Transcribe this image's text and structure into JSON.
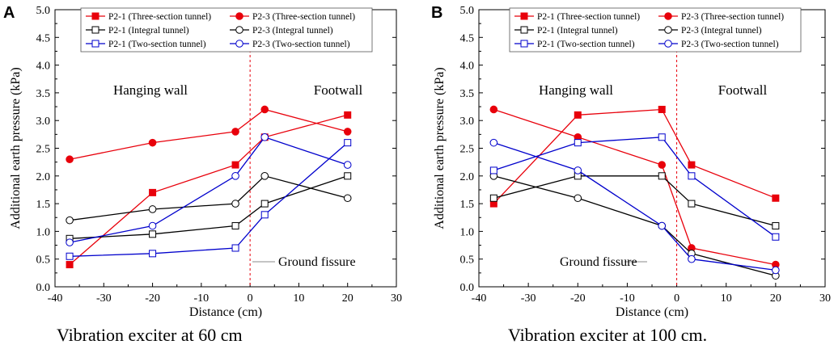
{
  "chart_data": [
    {
      "type": "line",
      "panel_label": "A",
      "caption": "Vibration exciter at 60 cm",
      "xlabel": "Distance (cm)",
      "ylabel": "Additional earth pressure (kPa)",
      "xlim": [
        -40,
        30
      ],
      "ylim": [
        0,
        5
      ],
      "xticks": [
        "-40",
        "-30",
        "-20",
        "-10",
        "0",
        "10",
        "20",
        "30"
      ],
      "yticks": [
        "0.0",
        "0.5",
        "1.0",
        "1.5",
        "2.0",
        "2.5",
        "3.0",
        "3.5",
        "4.0",
        "4.5",
        "5.0"
      ],
      "annotations": {
        "left_region": "Hanging wall",
        "right_region": "Footwall",
        "fissure_label": "Ground fissure"
      },
      "series": [
        {
          "name": "P2-1 (Three-section tunnel)",
          "color": "#e8000b",
          "marker": "square",
          "filled": true,
          "x": [
            -37,
            -20,
            -3,
            3,
            20
          ],
          "y": [
            0.4,
            1.7,
            2.2,
            2.7,
            3.1
          ]
        },
        {
          "name": "P2-3 (Three-section tunnel)",
          "color": "#e8000b",
          "marker": "circle",
          "filled": true,
          "x": [
            -37,
            -20,
            -3,
            3,
            20
          ],
          "y": [
            2.3,
            2.6,
            2.8,
            3.2,
            2.8
          ]
        },
        {
          "name": "P2-1 (Integral tunnel)",
          "color": "#000000",
          "marker": "square",
          "filled": false,
          "x": [
            -37,
            -20,
            -3,
            3,
            20
          ],
          "y": [
            0.87,
            0.95,
            1.1,
            1.5,
            2.0
          ]
        },
        {
          "name": "P2-3 (Integral tunnel)",
          "color": "#000000",
          "marker": "circle",
          "filled": false,
          "x": [
            -37,
            -20,
            -3,
            3,
            20
          ],
          "y": [
            1.2,
            1.4,
            1.5,
            2.0,
            1.6
          ]
        },
        {
          "name": "P2-1 (Two-section tunnel)",
          "color": "#0000cc",
          "marker": "square",
          "filled": false,
          "x": [
            -37,
            -20,
            -3,
            3,
            20
          ],
          "y": [
            0.55,
            0.6,
            0.7,
            1.3,
            2.6
          ]
        },
        {
          "name": "P2-3 (Two-section tunnel)",
          "color": "#0000cc",
          "marker": "circle",
          "filled": false,
          "x": [
            -37,
            -20,
            -3,
            3,
            20
          ],
          "y": [
            0.8,
            1.1,
            2.0,
            2.7,
            2.2
          ]
        }
      ]
    },
    {
      "type": "line",
      "panel_label": "B",
      "caption": "Vibration exciter at 100 cm.",
      "xlabel": "Distance (cm)",
      "ylabel": "Additional earth pressure (kPa)",
      "xlim": [
        -40,
        30
      ],
      "ylim": [
        0,
        5
      ],
      "xticks": [
        "-40",
        "-30",
        "-20",
        "-10",
        "0",
        "10",
        "20",
        "30"
      ],
      "yticks": [
        "0.0",
        "0.5",
        "1.0",
        "1.5",
        "2.0",
        "2.5",
        "3.0",
        "3.5",
        "4.0",
        "4.5",
        "5.0"
      ],
      "annotations": {
        "left_region": "Hanging wall",
        "right_region": "Footwall",
        "fissure_label": "Ground fissure"
      },
      "series": [
        {
          "name": "P2-1 (Three-section tunnel)",
          "color": "#e8000b",
          "marker": "square",
          "filled": true,
          "x": [
            -37,
            -20,
            -3,
            3,
            20
          ],
          "y": [
            1.5,
            3.1,
            3.2,
            2.2,
            1.6
          ]
        },
        {
          "name": "P2-3 (Three-section tunnel)",
          "color": "#e8000b",
          "marker": "circle",
          "filled": true,
          "x": [
            -37,
            -20,
            -3,
            3,
            20
          ],
          "y": [
            3.2,
            2.7,
            2.2,
            0.7,
            0.4
          ]
        },
        {
          "name": "P2-1 (Integral tunnel)",
          "color": "#000000",
          "marker": "square",
          "filled": false,
          "x": [
            -37,
            -20,
            -3,
            3,
            20
          ],
          "y": [
            1.6,
            2.0,
            2.0,
            1.5,
            1.1
          ]
        },
        {
          "name": "P2-3 (Integral tunnel)",
          "color": "#000000",
          "marker": "circle",
          "filled": false,
          "x": [
            -37,
            -20,
            -3,
            3,
            20
          ],
          "y": [
            2.0,
            1.6,
            1.1,
            0.6,
            0.2
          ]
        },
        {
          "name": "P2-1 (Two-section tunnel)",
          "color": "#0000cc",
          "marker": "square",
          "filled": false,
          "x": [
            -37,
            -20,
            -3,
            3,
            20
          ],
          "y": [
            2.1,
            2.6,
            2.7,
            2.0,
            0.9
          ]
        },
        {
          "name": "P2-3 (Two-section tunnel)",
          "color": "#0000cc",
          "marker": "circle",
          "filled": false,
          "x": [
            -37,
            -20,
            -3,
            3,
            20
          ],
          "y": [
            2.6,
            2.1,
            1.1,
            0.5,
            0.3
          ]
        }
      ]
    }
  ]
}
